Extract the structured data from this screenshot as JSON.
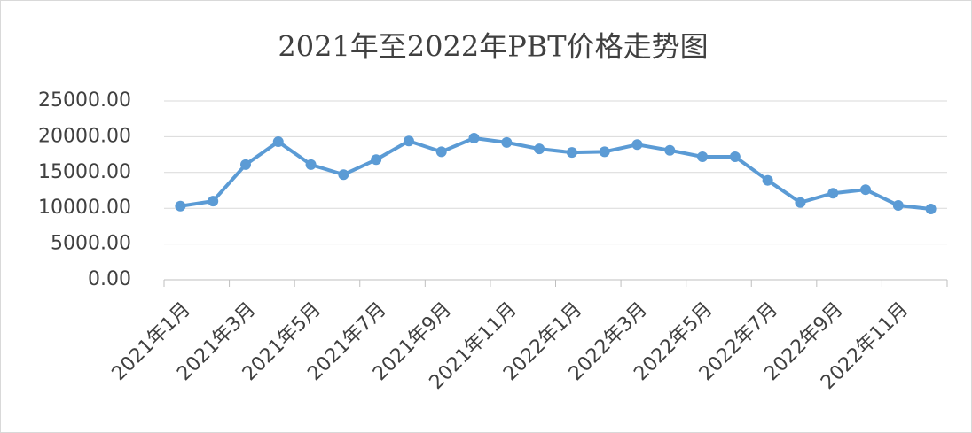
{
  "chart_data": {
    "type": "line",
    "title": "2021年至2022年PBT价格走势图",
    "categories": [
      "2021年1月",
      null,
      "2021年3月",
      null,
      "2021年5月",
      null,
      "2021年7月",
      null,
      "2021年9月",
      null,
      "2021年11月",
      null,
      "2022年1月",
      null,
      "2022年3月",
      null,
      "2022年5月",
      null,
      "2022年7月",
      null,
      "2022年9月",
      null,
      "2022年11月",
      null
    ],
    "series": [
      {
        "color": "#5b9bd5",
        "values": [
          10300,
          11000,
          16100,
          19300,
          16100,
          14700,
          16800,
          19400,
          17900,
          19800,
          19200,
          18300,
          17800,
          17900,
          18900,
          18100,
          17200,
          17200,
          13900,
          10800,
          12100,
          12600,
          10400,
          9900
        ]
      }
    ],
    "ylim": [
      0,
      25000
    ],
    "yticks": [
      {
        "value": 0,
        "label": "0.00"
      },
      {
        "value": 5000,
        "label": "5000.00"
      },
      {
        "value": 10000,
        "label": "10000.00"
      },
      {
        "value": 15000,
        "label": "15000.00"
      },
      {
        "value": 20000,
        "label": "20000.00"
      },
      {
        "value": 25000,
        "label": "25000.00"
      }
    ],
    "grid": true
  }
}
